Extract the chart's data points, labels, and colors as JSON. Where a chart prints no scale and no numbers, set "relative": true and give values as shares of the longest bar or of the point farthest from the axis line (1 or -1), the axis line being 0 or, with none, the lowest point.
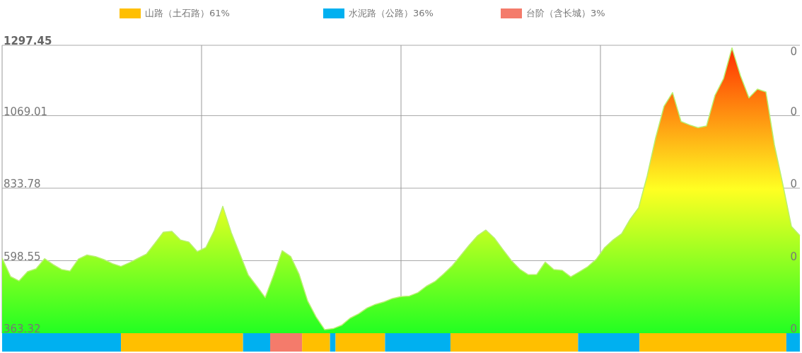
{
  "chart_data": [
    {
      "type": "area",
      "grid": true,
      "categories": [
        null,
        null,
        null,
        null,
        null,
        null,
        null,
        null,
        null,
        null,
        null,
        null,
        null,
        null,
        null,
        null,
        null,
        null,
        null,
        null,
        null,
        null,
        null,
        null,
        null,
        null,
        null,
        null,
        null,
        null,
        null,
        null,
        null,
        null,
        null,
        null,
        null,
        null,
        null,
        null,
        null,
        null,
        null,
        null,
        null,
        null,
        null,
        null,
        null,
        null,
        null,
        null,
        null,
        null,
        null,
        null,
        null,
        null,
        null,
        null,
        null,
        null,
        null,
        null,
        null,
        null,
        null,
        null,
        null,
        null,
        null,
        null,
        null,
        null,
        null,
        null,
        null,
        null,
        null,
        null,
        null,
        null,
        null,
        null,
        null,
        null,
        null,
        null,
        null,
        null,
        null,
        null,
        null,
        null,
        null
      ],
      "ylim": [
        363.32,
        1297.45
      ],
      "yticks": [
        363.32,
        598.55,
        833.78,
        1069.01,
        1297.45
      ],
      "annotations": [
        "0",
        "0",
        "0",
        "0",
        "0"
      ],
      "series": [
        {
          "color": "#b8f070",
          "values": [
            607,
            547,
            533,
            563,
            572,
            605,
            586,
            570,
            565,
            604,
            617,
            612,
            602,
            589,
            580,
            592,
            606,
            620,
            655,
            691,
            694,
            666,
            659,
            628,
            641,
            696,
            775,
            690,
            621,
            552,
            516,
            479,
            552,
            631,
            612,
            554,
            468,
            416,
            375,
            378,
            389,
            412,
            426,
            445,
            457,
            465,
            476,
            482,
            484,
            495,
            516,
            531,
            555,
            581,
            614,
            648,
            679,
            698,
            672,
            635,
            599,
            571,
            553,
            554,
            594,
            570,
            567,
            546,
            562,
            579,
            603,
            641,
            666,
            686,
            733,
            770,
            873,
            997,
            1100,
            1144,
            1050,
            1039,
            1030,
            1036,
            1135,
            1189,
            1289,
            1199,
            1127,
            1155,
            1146,
            974,
            845,
            710,
            680
          ]
        }
      ]
    },
    {
      "type": "bar",
      "orientation": "horizontal",
      "stacked": true,
      "relative": true,
      "legend": "top",
      "categories": [
        null
      ],
      "series": [
        {
          "color": "#00b0f0",
          "values": [
            0.149
          ]
        },
        {
          "name": "山路（土石路）61%",
          "color": "#ffbf00",
          "values": [
            0.153
          ]
        },
        {
          "name": "水泥路（公路）36%",
          "color": "#00b0f0",
          "values": [
            0.034
          ]
        },
        {
          "name": "台阶（含长城）3%",
          "color": "#f47b6b",
          "values": [
            0.04
          ]
        },
        {
          "color": "#ffbf00",
          "values": [
            0.035
          ]
        },
        {
          "color": "#00b0f0",
          "values": [
            0.007
          ]
        },
        {
          "color": "#ffbf00",
          "values": [
            0.062
          ]
        },
        {
          "color": "#00b0f0",
          "values": [
            0.082
          ]
        },
        {
          "color": "#ffbf00",
          "values": [
            0.16
          ]
        },
        {
          "color": "#00b0f0",
          "values": [
            0.077
          ]
        },
        {
          "color": "#ffbf00",
          "values": [
            0.184
          ]
        },
        {
          "color": "#00b0f0",
          "values": [
            0.017
          ]
        }
      ]
    }
  ]
}
